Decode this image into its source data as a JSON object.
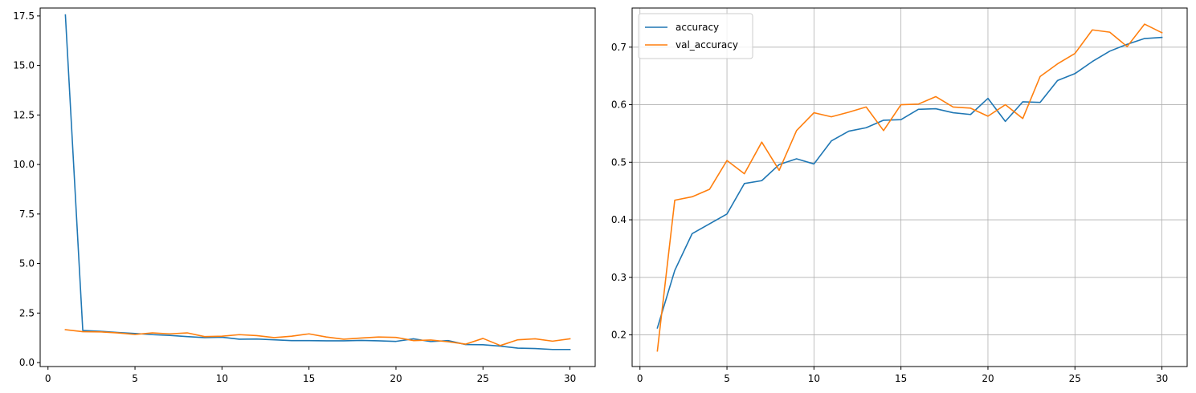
{
  "chart_data": [
    {
      "type": "line",
      "title": "",
      "xlabel": "",
      "ylabel": "",
      "xlim": [
        -0.45,
        31.45
      ],
      "ylim": [
        -0.2,
        17.9
      ],
      "xticks": [
        0,
        5,
        10,
        15,
        20,
        25,
        30
      ],
      "xtick_labels": [
        "0",
        "5",
        "10",
        "15",
        "20",
        "25",
        "30"
      ],
      "yticks": [
        0.0,
        2.5,
        5.0,
        7.5,
        10.0,
        12.5,
        15.0,
        17.5
      ],
      "ytick_labels": [
        "0.0",
        "2.5",
        "5.0",
        "7.5",
        "10.0",
        "12.5",
        "15.0",
        "17.5"
      ],
      "grid": false,
      "legend": null,
      "x": [
        1,
        2,
        3,
        4,
        5,
        6,
        7,
        8,
        9,
        10,
        11,
        12,
        13,
        14,
        15,
        16,
        17,
        18,
        19,
        20,
        21,
        22,
        23,
        24,
        25,
        26,
        27,
        28,
        29,
        30
      ],
      "series": [
        {
          "color": "#1f77b4",
          "values": [
            17.55,
            1.62,
            1.58,
            1.52,
            1.47,
            1.41,
            1.37,
            1.31,
            1.26,
            1.28,
            1.18,
            1.19,
            1.15,
            1.11,
            1.11,
            1.1,
            1.1,
            1.12,
            1.1,
            1.07,
            1.2,
            1.06,
            1.11,
            0.91,
            0.9,
            0.83,
            0.73,
            0.71,
            0.66,
            0.66
          ]
        },
        {
          "color": "#ff7f0e",
          "values": [
            1.66,
            1.56,
            1.55,
            1.5,
            1.42,
            1.5,
            1.45,
            1.5,
            1.31,
            1.33,
            1.41,
            1.36,
            1.26,
            1.33,
            1.45,
            1.29,
            1.18,
            1.24,
            1.29,
            1.27,
            1.11,
            1.14,
            1.05,
            0.93,
            1.22,
            0.86,
            1.15,
            1.2,
            1.08,
            1.2
          ]
        }
      ]
    },
    {
      "type": "line",
      "title": "",
      "xlabel": "",
      "ylabel": "",
      "xlim": [
        -0.45,
        31.45
      ],
      "ylim": [
        0.145,
        0.768
      ],
      "xticks": [
        0,
        5,
        10,
        15,
        20,
        25,
        30
      ],
      "xtick_labels": [
        "0",
        "5",
        "10",
        "15",
        "20",
        "25",
        "30"
      ],
      "yticks": [
        0.2,
        0.3,
        0.4,
        0.5,
        0.6,
        0.7
      ],
      "ytick_labels": [
        "0.2",
        "0.3",
        "0.4",
        "0.5",
        "0.6",
        "0.7"
      ],
      "grid": true,
      "legend": "upper-left",
      "x": [
        1,
        2,
        3,
        4,
        5,
        6,
        7,
        8,
        9,
        10,
        11,
        12,
        13,
        14,
        15,
        16,
        17,
        18,
        19,
        20,
        21,
        22,
        23,
        24,
        25,
        26,
        27,
        28,
        29,
        30
      ],
      "series": [
        {
          "name": "accuracy",
          "color": "#1f77b4",
          "values": [
            0.212,
            0.312,
            0.376,
            0.393,
            0.41,
            0.463,
            0.468,
            0.496,
            0.506,
            0.497,
            0.537,
            0.554,
            0.56,
            0.573,
            0.574,
            0.592,
            0.593,
            0.586,
            0.583,
            0.611,
            0.571,
            0.605,
            0.604,
            0.642,
            0.654,
            0.675,
            0.693,
            0.705,
            0.715,
            0.717
          ]
        },
        {
          "name": "val_accuracy",
          "color": "#ff7f0e",
          "values": [
            0.172,
            0.434,
            0.44,
            0.453,
            0.503,
            0.48,
            0.535,
            0.486,
            0.555,
            0.586,
            0.579,
            0.587,
            0.596,
            0.555,
            0.6,
            0.601,
            0.614,
            0.596,
            0.594,
            0.58,
            0.6,
            0.576,
            0.649,
            0.671,
            0.689,
            0.73,
            0.726,
            0.701,
            0.74,
            0.725
          ]
        }
      ]
    }
  ]
}
